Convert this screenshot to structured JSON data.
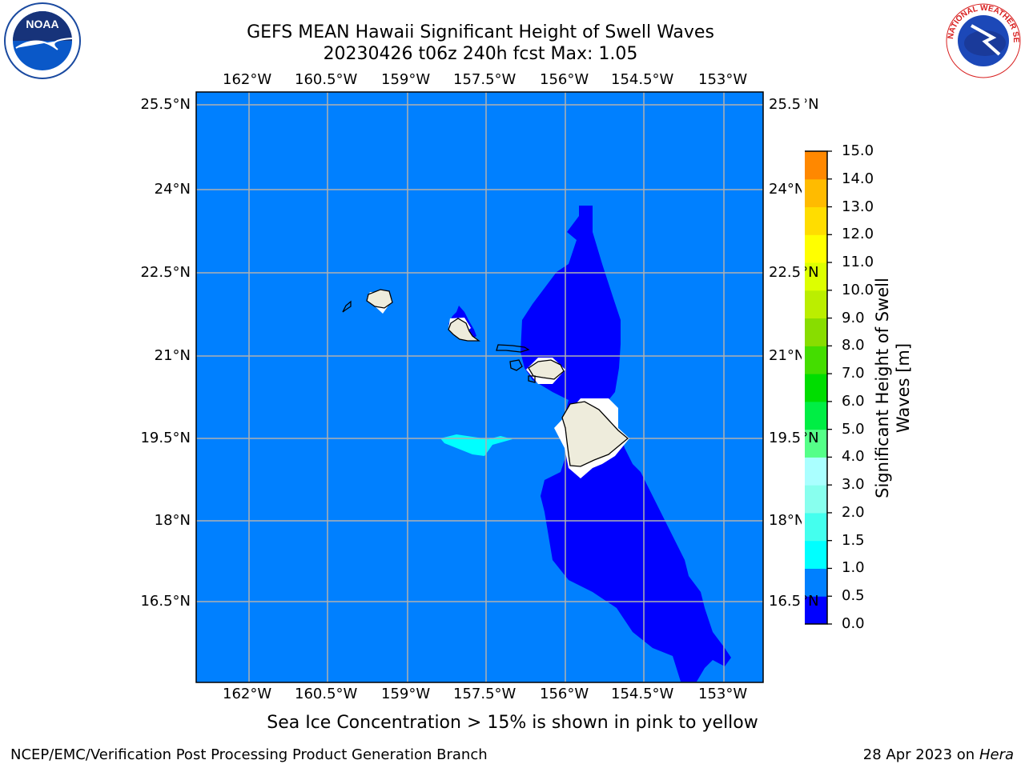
{
  "title": {
    "line1": "GEFS MEAN Hawaii Significant Height of Swell Waves",
    "line2": "20230426 t06z 240h fcst   Max: 1.05"
  },
  "logos": {
    "left": "noaa-logo",
    "right": "nws-logo",
    "right_ring_text": "NATIONAL WEATHER SERVICE"
  },
  "map": {
    "background_color": "#0080ff",
    "land_color": "#eeecdc",
    "grid_color": "#b0b0b0",
    "lon_labels": [
      "162°W",
      "160.5°W",
      "159°W",
      "157.5°W",
      "156°W",
      "154.5°W",
      "153°W"
    ],
    "lat_labels": [
      "25.5°N",
      "24°N",
      "22.5°N",
      "21°N",
      "19.5°N",
      "18°N",
      "16.5°N"
    ]
  },
  "colorbar": {
    "label": "Significant Height of Swell Waves [m]",
    "ticks": [
      "15.0",
      "14.0",
      "13.0",
      "12.0",
      "11.0",
      "10.0",
      "9.0",
      "8.0",
      "7.0",
      "6.0",
      "5.0",
      "4.0",
      "3.0",
      "2.0",
      "1.5",
      "1.0",
      "0.5",
      "0.0"
    ],
    "colors": [
      "#0000ff",
      "#0080ff",
      "#00ffff",
      "#44ffee",
      "#88ffee",
      "#aaffff",
      "#55ff88",
      "#00ee44",
      "#00dd00",
      "#44dd00",
      "#88dd00",
      "#bbee00",
      "#ddff00",
      "#ffff00",
      "#ffdd00",
      "#ffbb00",
      "#ff8800",
      "#ff6600",
      "#ff3300",
      "#ff0000"
    ]
  },
  "caption": "Sea Ice Concentration > 15% is shown in pink to yellow",
  "footer": {
    "left": "NCEP/EMC/Verification Post Processing Product Generation Branch",
    "right_date": "28 Apr 2023 on ",
    "right_host": "Hera"
  }
}
